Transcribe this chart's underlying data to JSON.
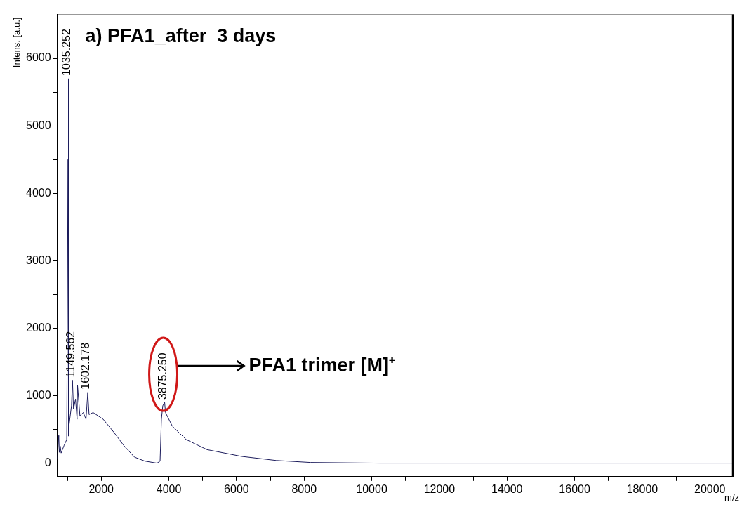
{
  "chart_data": {
    "type": "line",
    "title": "a) PFA1_after  3 days",
    "xlabel": "m/z",
    "ylabel": "Intens. [a.u.]",
    "x": [
      700,
      745,
      760,
      790,
      815,
      900,
      980,
      1020,
      1028,
      1035.252,
      1045,
      1120,
      1149.562,
      1180,
      1240,
      1285,
      1300,
      1370,
      1470,
      1550,
      1602.178,
      1640,
      1760,
      2060,
      2370,
      2670,
      2980,
      3290,
      3650,
      3740,
      3780,
      3820,
      3875.25,
      3900,
      4100,
      4510,
      5130,
      6150,
      7170,
      8190,
      10230,
      20700
    ],
    "series": [
      {
        "color": "#1c1c5c",
        "values": [
          60,
          410,
          160,
          250,
          150,
          260,
          350,
          4500,
          400,
          5700,
          550,
          850,
          1230,
          800,
          950,
          650,
          1150,
          700,
          750,
          650,
          1050,
          720,
          750,
          650,
          460,
          260,
          90,
          30,
          0,
          30,
          650,
          850,
          900,
          750,
          550,
          350,
          200,
          100,
          40,
          10,
          0,
          0
        ]
      }
    ],
    "xlim": [
      700,
      20700
    ],
    "xticks": [
      {
        "value": 1000,
        "label": null
      },
      2000,
      {
        "value": 3000,
        "label": null
      },
      4000,
      {
        "value": 5000,
        "label": null
      },
      6000,
      {
        "value": 7000,
        "label": null
      },
      8000,
      {
        "value": 9000,
        "label": null
      },
      10000,
      {
        "value": 11000,
        "label": null
      },
      12000,
      {
        "value": 13000,
        "label": null
      },
      14000,
      {
        "value": 15000,
        "label": null
      },
      16000,
      {
        "value": 17000,
        "label": null
      },
      18000,
      {
        "value": 19000,
        "label": null
      },
      20000
    ],
    "ylim": [
      -200,
      6650
    ],
    "yticks": [
      0,
      {
        "value": 500,
        "label": null
      },
      1000,
      {
        "value": 1500,
        "label": null
      },
      2000,
      {
        "value": 2500,
        "label": null
      },
      3000,
      {
        "value": 3500,
        "label": null
      },
      4000,
      {
        "value": 4500,
        "label": null
      },
      5000,
      {
        "value": 5500,
        "label": null
      },
      6000,
      {
        "value": 6500,
        "label": null
      }
    ],
    "annotations": [
      {
        "text": "1035.252",
        "x": 1035.252,
        "y": 5700
      },
      {
        "text": "1149.562",
        "x": 1149.562,
        "y": 1230
      },
      {
        "text": "1602.178",
        "x": 1602.178,
        "y": 1050
      },
      {
        "text": "3875.250",
        "x": 3875.25,
        "y": 900
      },
      "PFA1 trimer [M]⁺"
    ],
    "grid": false,
    "legend": false,
    "marker": "none",
    "line_style": "solid"
  }
}
